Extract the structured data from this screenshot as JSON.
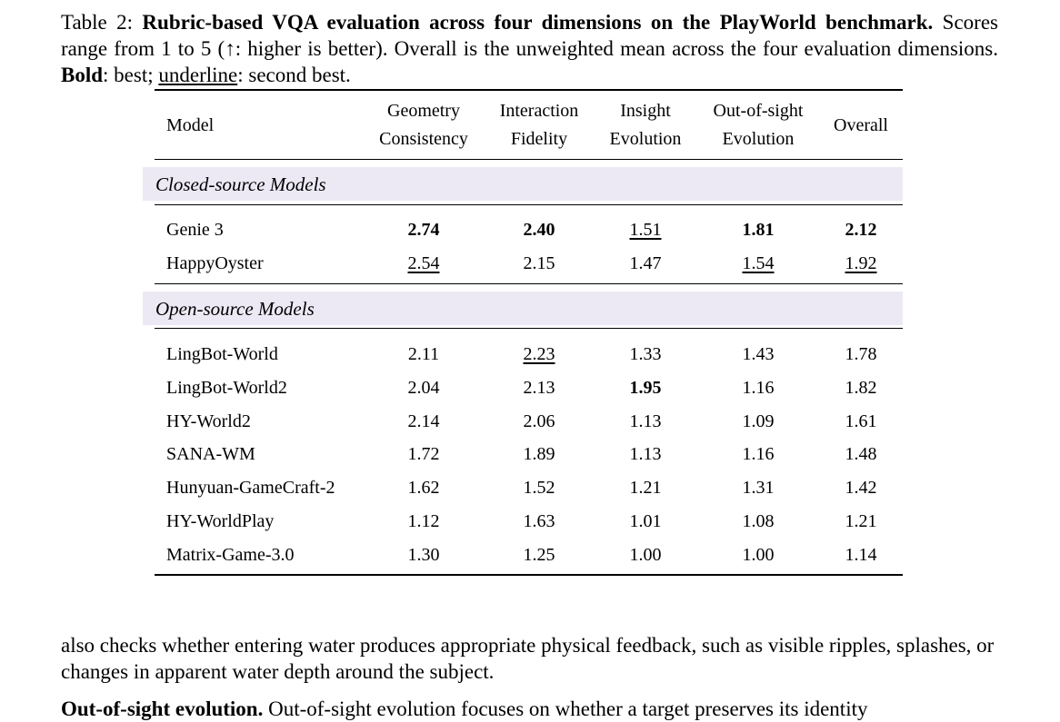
{
  "caption": {
    "prefix": "Table 2: ",
    "title": "Rubric-based VQA evaluation across four dimensions on the PlayWorld benchmark.",
    "text1": " Scores range from 1 to 5 (↑: higher is better). Overall is the unweighted mean across the four evaluation dimensions. ",
    "bold_word": "Bold",
    "text2": ": best; ",
    "underline_word": "underline",
    "text3": ": second best."
  },
  "table": {
    "headers": {
      "model": "Model",
      "geometry": [
        "Geometry",
        "Consistency"
      ],
      "interaction": [
        "Interaction",
        "Fidelity"
      ],
      "insight": [
        "Insight",
        "Evolution"
      ],
      "oos": [
        "Out-of-sight",
        "Evolution"
      ],
      "overall": "Overall"
    },
    "sections": [
      {
        "label": "Closed-source Models",
        "rows": [
          {
            "model": "Genie 3",
            "values": [
              "2.74",
              "2.40",
              "1.51",
              "1.81",
              "2.12"
            ],
            "style": [
              "b",
              "b",
              "u",
              "b",
              "b"
            ]
          },
          {
            "model": "HappyOyster",
            "values": [
              "2.54",
              "2.15",
              "1.47",
              "1.54",
              "1.92"
            ],
            "style": [
              "u",
              "",
              "",
              "u",
              "u"
            ]
          }
        ]
      },
      {
        "label": "Open-source Models",
        "rows": [
          {
            "model": "LingBot-World",
            "values": [
              "2.11",
              "2.23",
              "1.33",
              "1.43",
              "1.78"
            ],
            "style": [
              "",
              "u",
              "",
              "",
              ""
            ]
          },
          {
            "model": "LingBot-World2",
            "values": [
              "2.04",
              "2.13",
              "1.95",
              "1.16",
              "1.82"
            ],
            "style": [
              "",
              "",
              "b",
              "",
              ""
            ]
          },
          {
            "model": "HY-World2",
            "values": [
              "2.14",
              "2.06",
              "1.13",
              "1.09",
              "1.61"
            ],
            "style": [
              "",
              "",
              "",
              "",
              ""
            ]
          },
          {
            "model": "SANA-WM",
            "values": [
              "1.72",
              "1.89",
              "1.13",
              "1.16",
              "1.48"
            ],
            "style": [
              "",
              "",
              "",
              "",
              ""
            ]
          },
          {
            "model": "Hunyuan-GameCraft-2",
            "values": [
              "1.62",
              "1.52",
              "1.21",
              "1.31",
              "1.42"
            ],
            "style": [
              "",
              "",
              "",
              "",
              ""
            ]
          },
          {
            "model": "HY-WorldPlay",
            "values": [
              "1.12",
              "1.63",
              "1.01",
              "1.08",
              "1.21"
            ],
            "style": [
              "",
              "",
              "",
              "",
              ""
            ]
          },
          {
            "model": "Matrix-Game-3.0",
            "values": [
              "1.30",
              "1.25",
              "1.00",
              "1.00",
              "1.14"
            ],
            "style": [
              "",
              "",
              "",
              "",
              ""
            ]
          }
        ]
      }
    ]
  },
  "body": {
    "paragraph": "also checks whether entering water produces appropriate physical feedback, such as visible ripples, splashes, or changes in apparent water depth around the subject.",
    "next_heading": "Out-of-sight evolution.",
    "next_text": " Out-of-sight evolution focuses on whether a target preserves its identity"
  }
}
